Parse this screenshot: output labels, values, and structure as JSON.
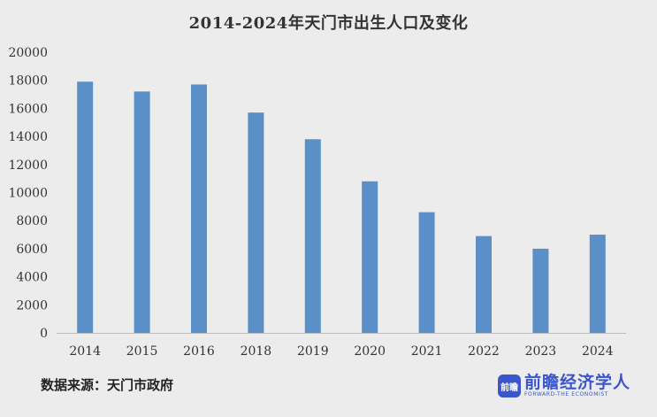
{
  "chart_data": {
    "type": "bar",
    "title": "2014-2024年天门市出生人口及变化",
    "categories": [
      "2014",
      "2015",
      "2016",
      "2018",
      "2019",
      "2020",
      "2021",
      "2022",
      "2023",
      "2024"
    ],
    "values": [
      17900,
      17200,
      17700,
      15700,
      13800,
      10800,
      8600,
      6900,
      6000,
      7000
    ],
    "ylim": [
      0,
      20000
    ],
    "yticks": [
      0,
      2000,
      4000,
      6000,
      8000,
      10000,
      12000,
      14000,
      16000,
      18000,
      20000
    ],
    "xlabel": "",
    "ylabel": "",
    "grid": false,
    "bar_color": "#5b8fc7"
  },
  "footer": {
    "source": "数据来源：天门市政府"
  },
  "logo": {
    "mark": "前瞻",
    "name": "前瞻经济学人",
    "tagline": "FORWARD-THE ECONOMIST",
    "color": "#3b56c9"
  }
}
